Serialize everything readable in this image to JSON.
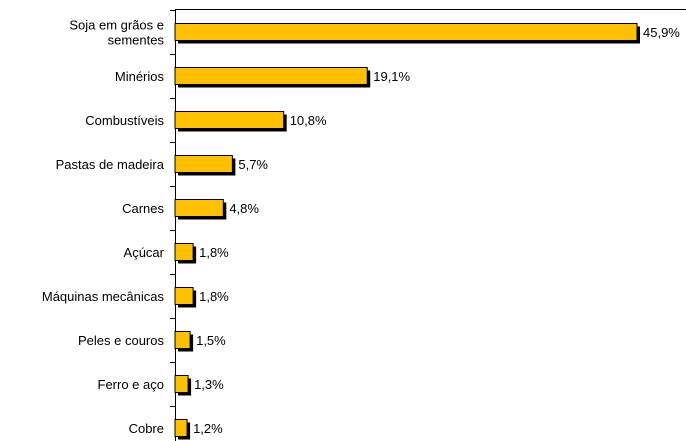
{
  "chart_data": {
    "type": "bar",
    "orientation": "horizontal",
    "categories": [
      [
        "Soja em grãos e",
        "sementes"
      ],
      [
        "Minérios"
      ],
      [
        "Combustíveis"
      ],
      [
        "Pastas de madeira"
      ],
      [
        "Carnes"
      ],
      [
        "Açúcar"
      ],
      [
        "Máquinas mecânicas"
      ],
      [
        "Peles e couros"
      ],
      [
        "Ferro e aço"
      ],
      [
        "Cobre"
      ]
    ],
    "values": [
      45.9,
      19.1,
      10.8,
      5.7,
      4.8,
      1.8,
      1.8,
      1.5,
      1.3,
      1.2
    ],
    "value_labels": [
      "45,9%",
      "19,1%",
      "10,8%",
      "5,7%",
      "4,8%",
      "1,8%",
      "1,8%",
      "1,5%",
      "1,3%",
      "1,2%"
    ],
    "xlim": [
      0,
      50
    ],
    "grid": false,
    "legend": "none",
    "colors": {
      "bar_fill": "#FFC000",
      "bar_outline": "#000000",
      "bar_shadow": "#000000",
      "axis": "#000000",
      "text": "#000000"
    }
  }
}
